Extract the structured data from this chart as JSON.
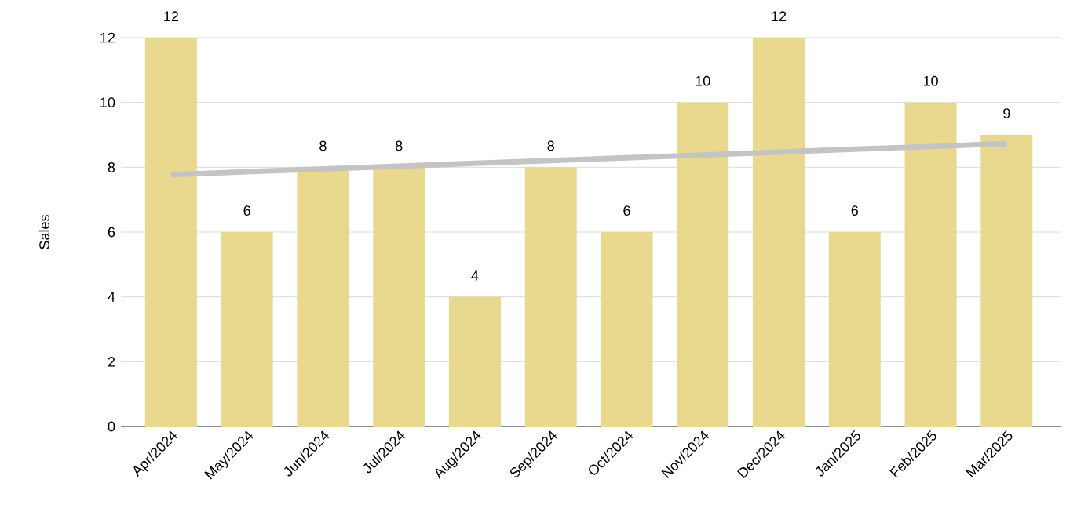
{
  "chart_data": {
    "type": "bar",
    "ylabel": "Sales",
    "categories": [
      "Apr/2024",
      "May/2024",
      "Jun/2024",
      "Jul/2024",
      "Aug/2024",
      "Sep/2024",
      "Oct/2024",
      "Nov/2024",
      "Dec/2024",
      "Jan/2025",
      "Feb/2025",
      "Mar/2025"
    ],
    "series": [
      {
        "color": "#e8d98f",
        "values": [
          12,
          6,
          8,
          8,
          4,
          8,
          6,
          10,
          12,
          6,
          10,
          9
        ],
        "value_labels": [
          "12",
          "6",
          "8",
          "8",
          "4",
          "8",
          "6",
          "10",
          "12",
          "6",
          "10",
          "9"
        ]
      },
      {
        "type": "line",
        "color": "#c4c4c4",
        "values": [
          7.77,
          7.86,
          7.95,
          8.03,
          8.12,
          8.21,
          8.29,
          8.38,
          8.47,
          8.56,
          8.64,
          8.73
        ]
      }
    ],
    "ylim": [
      0,
      12
    ],
    "yticks": [
      0,
      2,
      4,
      6,
      8,
      10,
      12
    ],
    "grid": "y"
  }
}
